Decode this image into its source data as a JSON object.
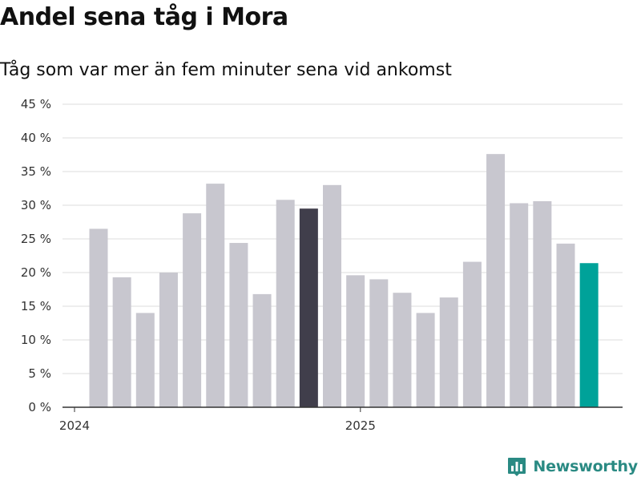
{
  "chart_data": {
    "type": "bar",
    "title": "Andel sena tåg i Mora",
    "subtitle": "Tåg som var mer än fem minuter sena vid ankomst",
    "xlabel": "",
    "ylabel": "",
    "ylim": [
      0,
      45
    ],
    "y_ticks": [
      0,
      5,
      10,
      15,
      20,
      25,
      30,
      35,
      40,
      45
    ],
    "y_tick_labels": [
      "0 %",
      "5 %",
      "10 %",
      "15 %",
      "20 %",
      "25 %",
      "30 %",
      "35 %",
      "40 %",
      "45 %"
    ],
    "x_tick_labels": [
      {
        "label": "2024",
        "index": 0
      },
      {
        "label": "2025",
        "index": 12
      }
    ],
    "grid": true,
    "values": [
      26.5,
      19.3,
      14.0,
      20.0,
      28.8,
      33.2,
      24.4,
      16.8,
      30.8,
      29.5,
      33.0,
      19.6,
      19.0,
      17.0,
      14.0,
      16.3,
      21.6,
      37.6,
      30.3,
      30.6,
      24.3,
      21.4
    ],
    "colors": {
      "default": "#c8c7cf",
      "highlight_dark": "#403e4b",
      "highlight_latest": "#00a299",
      "grid": "#dddddd",
      "axis": "#333333"
    },
    "highlight_dark_index": 9,
    "highlight_latest_index": 21
  },
  "brand": {
    "name": "Newsworthy",
    "logo_icon": "newsworthy-logo-icon",
    "color": "#2a8a83"
  }
}
